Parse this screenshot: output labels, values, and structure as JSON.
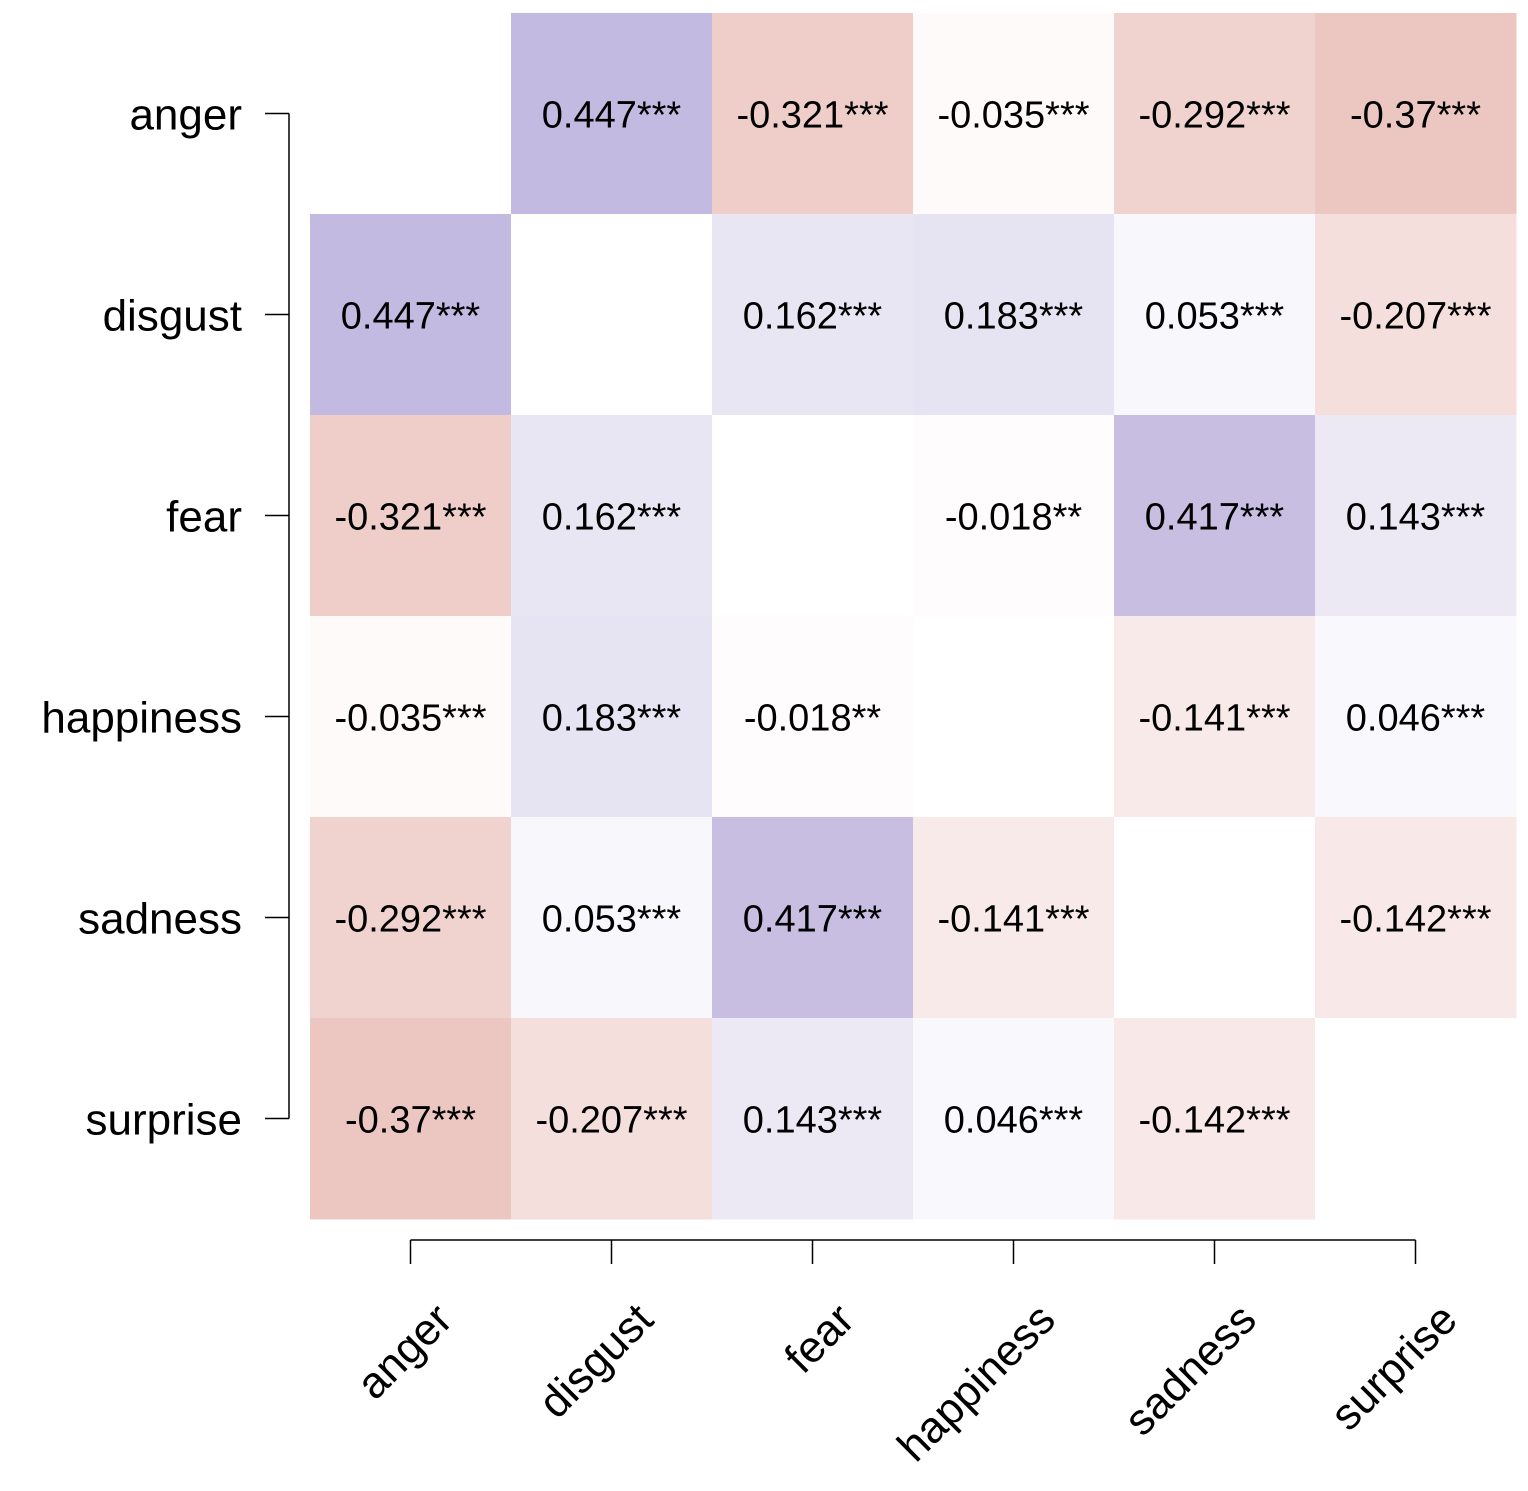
{
  "chart_data": {
    "type": "heatmap",
    "title": "",
    "xlabel": "",
    "ylabel": "",
    "categories": [
      "anger",
      "disgust",
      "fear",
      "happiness",
      "sadness",
      "surprise"
    ],
    "value_range": [
      -1,
      1
    ],
    "colors": {
      "positive": "#7e6bbd",
      "negative": "#cf6e62",
      "neutral": "#ffffff"
    },
    "values": [
      [
        null,
        0.447,
        -0.321,
        -0.035,
        -0.292,
        -0.37
      ],
      [
        0.447,
        null,
        0.162,
        0.183,
        0.053,
        -0.207
      ],
      [
        -0.321,
        0.162,
        null,
        -0.018,
        0.417,
        0.143
      ],
      [
        -0.035,
        0.183,
        -0.018,
        null,
        -0.141,
        0.046
      ],
      [
        -0.292,
        0.053,
        0.417,
        -0.141,
        null,
        -0.142
      ],
      [
        -0.37,
        -0.207,
        0.143,
        0.046,
        -0.142,
        null
      ]
    ],
    "labels": [
      [
        "",
        "0.447***",
        "-0.321***",
        "-0.035***",
        "-0.292***",
        "-0.37***"
      ],
      [
        "0.447***",
        "",
        "0.162***",
        "0.183***",
        "0.053***",
        "-0.207***"
      ],
      [
        "-0.321***",
        "0.162***",
        "",
        "-0.018**",
        "0.417***",
        "0.143***"
      ],
      [
        "-0.035***",
        "0.183***",
        "-0.018**",
        "",
        "-0.141***",
        "0.046***"
      ],
      [
        "-0.292***",
        "0.053***",
        "0.417***",
        "-0.141***",
        "",
        "-0.142***"
      ],
      [
        "-0.37***",
        "-0.207***",
        "0.143***",
        "0.046***",
        "-0.142***",
        ""
      ]
    ]
  }
}
